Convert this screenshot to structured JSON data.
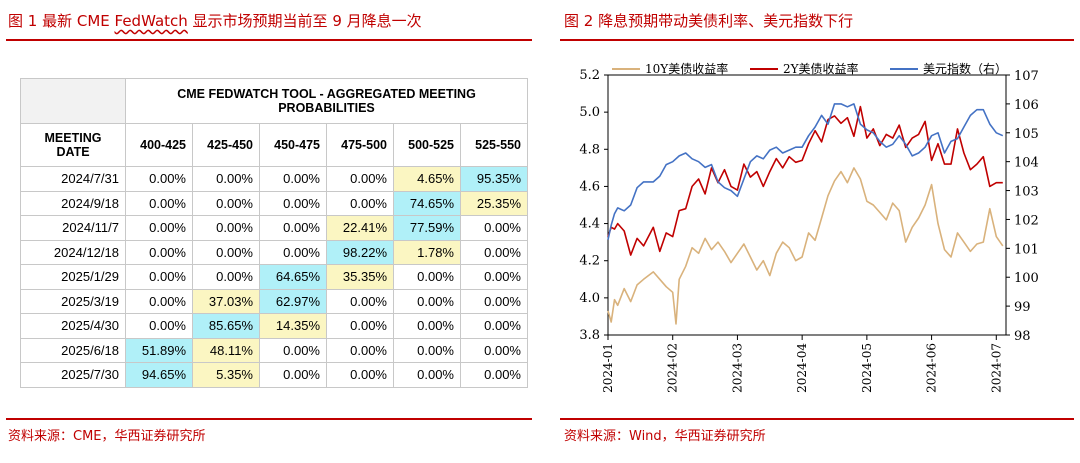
{
  "left": {
    "title_prefix": "图 1  最新 CME ",
    "title_link": "FedWatch",
    "title_suffix": " 显示市场预期当前至 9 月降息一次",
    "source": "资料来源：CME，华西证券研究所",
    "table": {
      "banner": "CME FEDWATCH TOOL - AGGREGATED MEETING PROBABILITIES",
      "date_header": "MEETING DATE",
      "columns": [
        "400-425",
        "425-450",
        "450-475",
        "475-500",
        "500-525",
        "525-550"
      ],
      "rows": [
        {
          "date": "2024/7/31",
          "values": [
            "0.00%",
            "0.00%",
            "0.00%",
            "0.00%",
            "4.65%",
            "95.35%"
          ],
          "colors": [
            "",
            "",
            "",
            "",
            "y",
            "c"
          ]
        },
        {
          "date": "2024/9/18",
          "values": [
            "0.00%",
            "0.00%",
            "0.00%",
            "0.00%",
            "74.65%",
            "25.35%"
          ],
          "colors": [
            "",
            "",
            "",
            "",
            "c",
            "y"
          ]
        },
        {
          "date": "2024/11/7",
          "values": [
            "0.00%",
            "0.00%",
            "0.00%",
            "22.41%",
            "77.59%",
            "0.00%"
          ],
          "colors": [
            "",
            "",
            "",
            "y",
            "c",
            ""
          ]
        },
        {
          "date": "2024/12/18",
          "values": [
            "0.00%",
            "0.00%",
            "0.00%",
            "98.22%",
            "1.78%",
            "0.00%"
          ],
          "colors": [
            "",
            "",
            "",
            "c",
            "y",
            ""
          ]
        },
        {
          "date": "2025/1/29",
          "values": [
            "0.00%",
            "0.00%",
            "64.65%",
            "35.35%",
            "0.00%",
            "0.00%"
          ],
          "colors": [
            "",
            "",
            "c",
            "y",
            "",
            ""
          ]
        },
        {
          "date": "2025/3/19",
          "values": [
            "0.00%",
            "37.03%",
            "62.97%",
            "0.00%",
            "0.00%",
            "0.00%"
          ],
          "colors": [
            "",
            "y",
            "c",
            "",
            "",
            ""
          ]
        },
        {
          "date": "2025/4/30",
          "values": [
            "0.00%",
            "85.65%",
            "14.35%",
            "0.00%",
            "0.00%",
            "0.00%"
          ],
          "colors": [
            "",
            "c",
            "y",
            "",
            "",
            ""
          ]
        },
        {
          "date": "2025/6/18",
          "values": [
            "51.89%",
            "48.11%",
            "0.00%",
            "0.00%",
            "0.00%",
            "0.00%"
          ],
          "colors": [
            "c",
            "y",
            "",
            "",
            "",
            ""
          ]
        },
        {
          "date": "2025/7/30",
          "values": [
            "94.65%",
            "5.35%",
            "0.00%",
            "0.00%",
            "0.00%",
            "0.00%"
          ],
          "colors": [
            "c",
            "y",
            "",
            "",
            "",
            ""
          ]
        }
      ]
    },
    "colors": {
      "cyan": "#b0f0f8",
      "yellow": "#fbf6c2",
      "accent": "#c00000"
    }
  },
  "right": {
    "title": "图 2   降息预期带动美债利率、美元指数下行",
    "source": "资料来源：Wind，华西证券研究所",
    "chart_data": {
      "type": "line",
      "title": "降息预期带动美债利率、美元指数下行",
      "x_labels": [
        "2024-01",
        "2024-02",
        "2024-03",
        "2024-04",
        "2024-05",
        "2024-06",
        "2024-07"
      ],
      "x_range": [
        0,
        6.15
      ],
      "y_left": {
        "range": [
          3.8,
          5.2
        ],
        "ticks": [
          "3.8",
          "4.0",
          "4.2",
          "4.4",
          "4.6",
          "4.8",
          "5.0",
          "5.2"
        ]
      },
      "y_right": {
        "range": [
          98,
          107
        ],
        "ticks": [
          "98",
          "99",
          "100",
          "101",
          "102",
          "103",
          "104",
          "105",
          "106",
          "107"
        ]
      },
      "series": [
        {
          "name": "10Y美债收益率",
          "axis": "left",
          "color": "#d9b27c",
          "x": [
            0.0,
            0.05,
            0.1,
            0.15,
            0.25,
            0.35,
            0.45,
            0.55,
            0.7,
            0.8,
            0.9,
            1.0,
            1.05,
            1.1,
            1.2,
            1.3,
            1.4,
            1.5,
            1.6,
            1.7,
            1.8,
            1.9,
            2.0,
            2.1,
            2.2,
            2.3,
            2.4,
            2.5,
            2.6,
            2.7,
            2.8,
            2.9,
            3.0,
            3.1,
            3.2,
            3.3,
            3.4,
            3.5,
            3.6,
            3.7,
            3.8,
            3.9,
            4.0,
            4.1,
            4.2,
            4.3,
            4.4,
            4.5,
            4.6,
            4.7,
            4.8,
            4.9,
            5.0,
            5.1,
            5.2,
            5.3,
            5.4,
            5.5,
            5.6,
            5.7,
            5.8,
            5.9,
            6.0,
            6.1
          ],
          "y": [
            3.93,
            3.87,
            3.99,
            3.96,
            4.05,
            3.98,
            4.07,
            4.1,
            4.14,
            4.1,
            4.06,
            4.03,
            3.86,
            4.1,
            4.17,
            4.27,
            4.24,
            4.32,
            4.26,
            4.3,
            4.25,
            4.19,
            4.24,
            4.29,
            4.22,
            4.15,
            4.2,
            4.12,
            4.24,
            4.3,
            4.27,
            4.2,
            4.22,
            4.35,
            4.31,
            4.43,
            4.55,
            4.63,
            4.68,
            4.62,
            4.7,
            4.64,
            4.52,
            4.5,
            4.46,
            4.42,
            4.51,
            4.47,
            4.3,
            4.38,
            4.43,
            4.5,
            4.61,
            4.4,
            4.26,
            4.22,
            4.35,
            4.3,
            4.25,
            4.29,
            4.3,
            4.48,
            4.33,
            4.28
          ]
        },
        {
          "name": "2Y美债收益率",
          "axis": "left",
          "color": "#c00000",
          "x": [
            0.0,
            0.05,
            0.1,
            0.15,
            0.25,
            0.35,
            0.45,
            0.55,
            0.7,
            0.8,
            0.9,
            1.0,
            1.1,
            1.2,
            1.3,
            1.4,
            1.5,
            1.6,
            1.7,
            1.8,
            1.9,
            2.0,
            2.1,
            2.2,
            2.3,
            2.4,
            2.5,
            2.6,
            2.7,
            2.8,
            2.9,
            3.0,
            3.1,
            3.2,
            3.3,
            3.4,
            3.5,
            3.6,
            3.7,
            3.8,
            3.9,
            4.0,
            4.1,
            4.2,
            4.3,
            4.4,
            4.5,
            4.6,
            4.7,
            4.8,
            4.9,
            5.0,
            5.1,
            5.2,
            5.3,
            5.4,
            5.5,
            5.6,
            5.7,
            5.8,
            5.9,
            6.0,
            6.1
          ],
          "y": [
            4.33,
            4.38,
            4.37,
            4.4,
            4.36,
            4.23,
            4.32,
            4.28,
            4.38,
            4.25,
            4.35,
            4.33,
            4.47,
            4.48,
            4.6,
            4.64,
            4.56,
            4.7,
            4.62,
            4.69,
            4.6,
            4.58,
            4.72,
            4.65,
            4.68,
            4.6,
            4.68,
            4.75,
            4.7,
            4.76,
            4.73,
            4.74,
            4.83,
            4.9,
            4.84,
            4.96,
            4.98,
            4.94,
            4.97,
            4.87,
            5.03,
            4.86,
            4.91,
            4.82,
            4.88,
            4.86,
            4.93,
            4.81,
            4.86,
            4.88,
            4.95,
            4.74,
            4.83,
            4.72,
            4.72,
            4.91,
            4.78,
            4.69,
            4.72,
            4.76,
            4.6,
            4.62,
            4.62
          ]
        },
        {
          "name": "美元指数（右）",
          "axis": "right",
          "color": "#4472c4",
          "x": [
            0.0,
            0.05,
            0.1,
            0.15,
            0.25,
            0.35,
            0.45,
            0.55,
            0.7,
            0.8,
            0.9,
            1.0,
            1.1,
            1.2,
            1.3,
            1.4,
            1.5,
            1.6,
            1.7,
            1.8,
            1.9,
            2.0,
            2.1,
            2.2,
            2.3,
            2.4,
            2.5,
            2.6,
            2.7,
            2.8,
            2.9,
            3.0,
            3.1,
            3.2,
            3.3,
            3.4,
            3.5,
            3.6,
            3.7,
            3.8,
            3.9,
            4.0,
            4.1,
            4.2,
            4.3,
            4.4,
            4.5,
            4.6,
            4.7,
            4.8,
            4.9,
            5.0,
            5.1,
            5.2,
            5.3,
            5.4,
            5.5,
            5.6,
            5.7,
            5.8,
            5.9,
            6.0,
            6.1
          ],
          "y": [
            101.3,
            101.8,
            102.2,
            102.4,
            102.3,
            102.5,
            103.1,
            103.3,
            103.3,
            103.5,
            103.9,
            104.0,
            104.2,
            104.3,
            104.1,
            104.0,
            103.8,
            103.9,
            103.3,
            103.1,
            103.0,
            102.8,
            103.4,
            104.0,
            104.2,
            104.1,
            104.4,
            104.5,
            104.3,
            104.4,
            104.5,
            104.5,
            104.9,
            105.2,
            105.6,
            105.3,
            106.0,
            106.0,
            105.9,
            106.0,
            105.3,
            105.1,
            105.0,
            104.7,
            104.5,
            104.6,
            104.9,
            104.6,
            104.2,
            104.3,
            104.5,
            104.9,
            105.0,
            104.3,
            104.7,
            104.8,
            105.2,
            105.6,
            105.8,
            105.8,
            105.3,
            105.0,
            104.9
          ]
        }
      ]
    }
  }
}
